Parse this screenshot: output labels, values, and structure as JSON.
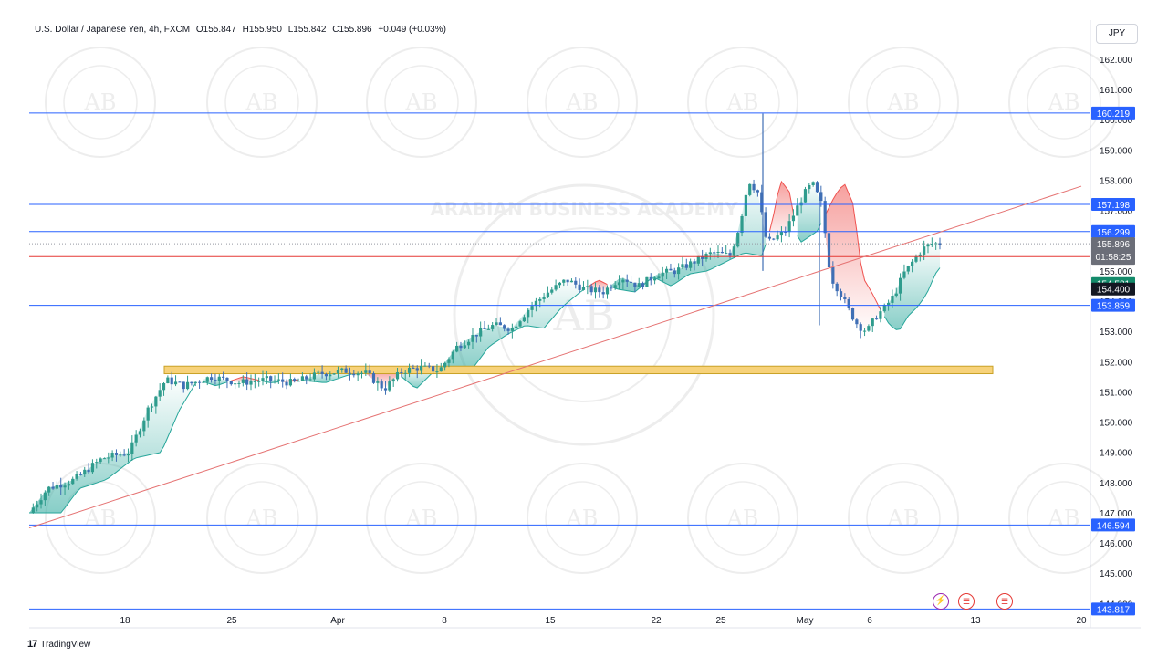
{
  "header": {
    "symbol": "U.S. Dollar / Japanese Yen, 4h, FXCM",
    "open": "O155.847",
    "high": "H155.950",
    "low": "L155.842",
    "close": "C155.896",
    "change": "+0.049 (+0.03%)",
    "currency": "JPY"
  },
  "footer": {
    "brand": "TradingView",
    "logo_text": "17"
  },
  "watermark": {
    "initials": "AB",
    "text": "ARABIAN BUSINESS ACADEMY"
  },
  "events": {
    "flash_icon": "lightning-icon",
    "flag_icon": "us-flag-icon"
  },
  "colors": {
    "hline": "#2962ff",
    "trendline": "#e57373",
    "zone_fill": "#f7d27a",
    "candle_up": "#2f9c8d",
    "candle_down": "#3f6fb5",
    "cloud_bull": "#26a69a",
    "cloud_bear": "#ef5350",
    "current_price_bg": "#6b6e78",
    "red_label": "#e53935",
    "green_label": "#138a6a",
    "black_label": "#131722"
  },
  "chart_data": {
    "type": "candlestick",
    "x_ticks": [
      "18",
      "25",
      "Apr",
      "8",
      "15",
      "22",
      "25",
      "May",
      "6",
      "13",
      "20"
    ],
    "y_ticks": [
      "162.000",
      "161.000",
      "160.000",
      "159.000",
      "158.000",
      "157.000",
      "156.000",
      "155.000",
      "154.000",
      "153.000",
      "152.000",
      "151.000",
      "150.000",
      "149.000",
      "148.000",
      "147.000",
      "146.000",
      "145.000",
      "144.000"
    ],
    "ylim": [
      143.8,
      162.6
    ],
    "horizontal_levels": [
      {
        "label": "160.219",
        "value": 160.219,
        "style": "blue"
      },
      {
        "label": "157.198",
        "value": 157.198,
        "style": "blue"
      },
      {
        "label": "156.299",
        "value": 156.299,
        "style": "blue"
      },
      {
        "label": "153.859",
        "value": 153.859,
        "style": "blue"
      },
      {
        "label": "146.594",
        "value": 146.594,
        "style": "blue"
      },
      {
        "label": "143.817",
        "value": 143.817,
        "style": "blue"
      },
      {
        "label": "155.472",
        "value": 155.472,
        "style": "red"
      }
    ],
    "price_labels": [
      {
        "label": "155.896",
        "sub": "01:58:25",
        "value": 155.896,
        "kind": "current"
      },
      {
        "label": "154.581",
        "value": 154.581,
        "kind": "green"
      },
      {
        "label": "154.400",
        "value": 154.4,
        "kind": "black"
      }
    ],
    "support_zone": {
      "from_x": 0.135,
      "to_x": 0.905,
      "y_low": 151.6,
      "y_high": 151.85
    },
    "trendline": {
      "x0": 0.0,
      "y0": 146.5,
      "x1": 1.0,
      "y1": 157.8
    },
    "close_path": [
      [
        0.0,
        147.0
      ],
      [
        0.02,
        147.8
      ],
      [
        0.05,
        148.1
      ],
      [
        0.08,
        148.8
      ],
      [
        0.11,
        149.0
      ],
      [
        0.13,
        150.4
      ],
      [
        0.15,
        151.4
      ],
      [
        0.17,
        151.2
      ],
      [
        0.2,
        151.5
      ],
      [
        0.23,
        151.3
      ],
      [
        0.26,
        151.4
      ],
      [
        0.29,
        151.3
      ],
      [
        0.32,
        151.6
      ],
      [
        0.35,
        151.7
      ],
      [
        0.37,
        151.6
      ],
      [
        0.39,
        151.1
      ],
      [
        0.41,
        151.7
      ],
      [
        0.43,
        151.8
      ],
      [
        0.45,
        151.7
      ],
      [
        0.47,
        152.5
      ],
      [
        0.49,
        152.9
      ],
      [
        0.51,
        153.2
      ],
      [
        0.53,
        153.1
      ],
      [
        0.55,
        153.8
      ],
      [
        0.57,
        154.3
      ],
      [
        0.59,
        154.7
      ],
      [
        0.61,
        154.4
      ],
      [
        0.63,
        154.3
      ],
      [
        0.65,
        154.8
      ],
      [
        0.67,
        154.5
      ],
      [
        0.69,
        154.9
      ],
      [
        0.71,
        155.0
      ],
      [
        0.73,
        155.3
      ],
      [
        0.75,
        155.6
      ],
      [
        0.77,
        155.5
      ],
      [
        0.78,
        156.5
      ],
      [
        0.79,
        158.0
      ],
      [
        0.8,
        157.6
      ],
      [
        0.81,
        155.9
      ],
      [
        0.83,
        156.3
      ],
      [
        0.85,
        157.5
      ],
      [
        0.86,
        157.9
      ],
      [
        0.87,
        157.2
      ],
      [
        0.88,
        154.8
      ],
      [
        0.89,
        154.3
      ],
      [
        0.9,
        153.7
      ],
      [
        0.91,
        153.2
      ],
      [
        0.92,
        153.0
      ],
      [
        0.93,
        153.5
      ],
      [
        0.94,
        153.8
      ],
      [
        0.95,
        154.2
      ],
      [
        0.96,
        154.9
      ],
      [
        0.97,
        155.3
      ],
      [
        0.98,
        155.7
      ],
      [
        0.99,
        155.9
      ]
    ],
    "annotations": [
      "01:58:25"
    ]
  }
}
